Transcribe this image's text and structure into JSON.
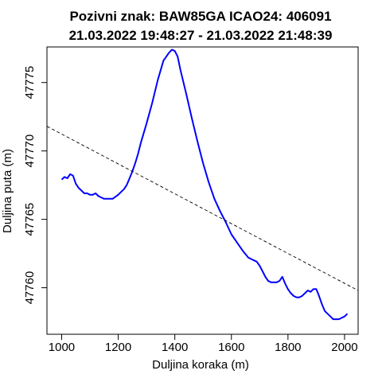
{
  "chart_data": {
    "type": "line",
    "title": "Pozivni znak: BAW85GA  ICAO24: 406091",
    "subtitle": "21.03.2022 19:48:27 - 21.03.2022 21:48:39",
    "xlabel": "Duljina koraka (m)",
    "ylabel": "Duljina puta (m)",
    "xlim": [
      948,
      2048
    ],
    "ylim": [
      47756.6,
      47777.6
    ],
    "x_ticks": [
      1000,
      1200,
      1400,
      1600,
      1800,
      2000
    ],
    "y_ticks": [
      47760,
      47765,
      47770,
      47775
    ],
    "x_tick_labels": [
      "1000",
      "1200",
      "1400",
      "1600",
      "1800",
      "2000"
    ],
    "y_tick_labels": [
      "47760",
      "47765",
      "47770",
      "47775"
    ],
    "grid": false,
    "series": [
      {
        "style": "solid",
        "color": "#0000ff",
        "x": [
          1000,
          1010,
          1020,
          1030,
          1040,
          1050,
          1060,
          1070,
          1080,
          1090,
          1100,
          1110,
          1120,
          1130,
          1140,
          1150,
          1160,
          1180,
          1200,
          1210,
          1220,
          1230,
          1240,
          1250,
          1260,
          1270,
          1280,
          1300,
          1320,
          1340,
          1360,
          1380,
          1390,
          1400,
          1410,
          1420,
          1440,
          1460,
          1480,
          1500,
          1520,
          1540,
          1560,
          1580,
          1600,
          1620,
          1640,
          1660,
          1670,
          1680,
          1690,
          1700,
          1710,
          1720,
          1730,
          1740,
          1750,
          1760,
          1770,
          1780,
          1790,
          1800,
          1810,
          1820,
          1830,
          1840,
          1850,
          1860,
          1870,
          1880,
          1890,
          1900,
          1910,
          1920,
          1930,
          1940,
          1950,
          1960,
          1970,
          1980,
          1990,
          2000,
          2010
        ],
        "y": [
          47767.9,
          47768.1,
          47768.0,
          47768.3,
          47768.2,
          47767.6,
          47767.3,
          47767.1,
          47766.9,
          47766.9,
          47766.8,
          47766.8,
          47766.9,
          47766.7,
          47766.6,
          47766.5,
          47766.5,
          47766.5,
          47766.8,
          47767.0,
          47767.2,
          47767.5,
          47768.0,
          47768.5,
          47769.1,
          47769.8,
          47770.6,
          47772.0,
          47773.5,
          47775.2,
          47776.6,
          47777.2,
          47777.4,
          47777.3,
          47776.9,
          47775.9,
          47774.2,
          47772.4,
          47770.7,
          47769.1,
          47767.7,
          47766.5,
          47765.6,
          47764.8,
          47763.9,
          47763.3,
          47762.7,
          47762.2,
          47762.1,
          47762.0,
          47761.9,
          47761.6,
          47761.2,
          47760.8,
          47760.5,
          47760.4,
          47760.4,
          47760.4,
          47760.5,
          47760.8,
          47760.3,
          47759.9,
          47759.6,
          47759.4,
          47759.3,
          47759.3,
          47759.4,
          47759.6,
          47759.8,
          47759.7,
          47759.9,
          47759.9,
          47759.4,
          47758.8,
          47758.3,
          47758.1,
          47757.9,
          47757.7,
          47757.7,
          47757.7,
          47757.8,
          47757.9,
          47758.1
        ]
      },
      {
        "style": "dashed",
        "color": "#000000",
        "x": [
          948,
          2048
        ],
        "y": [
          47771.8,
          47759.8
        ]
      }
    ]
  }
}
